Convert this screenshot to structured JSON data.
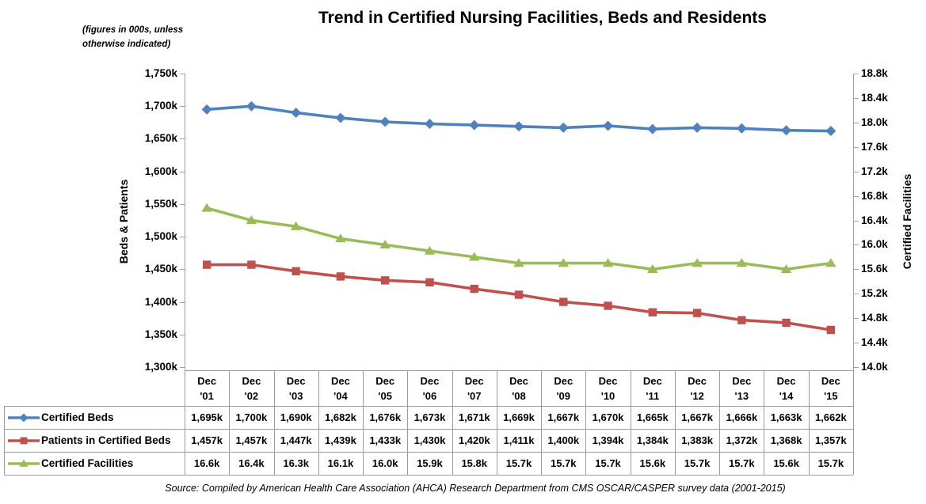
{
  "note": "(figures in 000s, unless\notherwise indicated)",
  "source": "Source: Compiled by American Health Care Association (AHCA) Research Department from CMS OSCAR/CASPER survey data (2001-2015)",
  "chart_data": {
    "type": "line",
    "title": "Trend in Certified Nursing Facilities, Beds and Residents",
    "categories": [
      "Dec '01",
      "Dec '02",
      "Dec '03",
      "Dec '04",
      "Dec '05",
      "Dec '06",
      "Dec '07",
      "Dec '08",
      "Dec '09",
      "Dec '10",
      "Dec '11",
      "Dec '12",
      "Dec '13",
      "Dec '14",
      "Dec '15"
    ],
    "ylabel_left": "Beds & Patients",
    "ylabel_right": "Certified Facilities",
    "ylim_left": [
      1300,
      1750
    ],
    "ylim_right": [
      14.0,
      18.8
    ],
    "left_ticks": [
      "1,750k",
      "1,700k",
      "1,650k",
      "1,600k",
      "1,550k",
      "1,500k",
      "1,450k",
      "1,400k",
      "1,350k",
      "1,300k"
    ],
    "right_ticks": [
      "18.8k",
      "18.4k",
      "18.0k",
      "17.6k",
      "17.2k",
      "16.8k",
      "16.4k",
      "16.0k",
      "15.6k",
      "15.2k",
      "14.8k",
      "14.4k",
      "14.0k"
    ],
    "grid": false,
    "legend_position": "table-left",
    "series": [
      {
        "name": "Certified Beds",
        "axis": "left",
        "color": "#4F81BD",
        "marker": "diamond",
        "values": [
          1695,
          1700,
          1690,
          1682,
          1676,
          1673,
          1671,
          1669,
          1667,
          1670,
          1665,
          1667,
          1666,
          1663,
          1662
        ],
        "display": [
          "1,695k",
          "1,700k",
          "1,690k",
          "1,682k",
          "1,676k",
          "1,673k",
          "1,671k",
          "1,669k",
          "1,667k",
          "1,670k",
          "1,665k",
          "1,667k",
          "1,666k",
          "1,663k",
          "1,662k"
        ]
      },
      {
        "name": "Patients in Certified Beds",
        "axis": "left",
        "color": "#C0504D",
        "marker": "square",
        "values": [
          1457,
          1457,
          1447,
          1439,
          1433,
          1430,
          1420,
          1411,
          1400,
          1394,
          1384,
          1383,
          1372,
          1368,
          1357
        ],
        "display": [
          "1,457k",
          "1,457k",
          "1,447k",
          "1,439k",
          "1,433k",
          "1,430k",
          "1,420k",
          "1,411k",
          "1,400k",
          "1,394k",
          "1,384k",
          "1,383k",
          "1,372k",
          "1,368k",
          "1,357k"
        ]
      },
      {
        "name": "Certified Facilities",
        "axis": "right",
        "color": "#9BBB59",
        "marker": "triangle",
        "values": [
          16.6,
          16.4,
          16.3,
          16.1,
          16.0,
          15.9,
          15.8,
          15.7,
          15.7,
          15.7,
          15.6,
          15.7,
          15.7,
          15.6,
          15.7
        ],
        "display": [
          "16.6k",
          "16.4k",
          "16.3k",
          "16.1k",
          "16.0k",
          "15.9k",
          "15.8k",
          "15.7k",
          "15.7k",
          "15.7k",
          "15.6k",
          "15.7k",
          "15.7k",
          "15.6k",
          "15.7k"
        ]
      }
    ]
  }
}
